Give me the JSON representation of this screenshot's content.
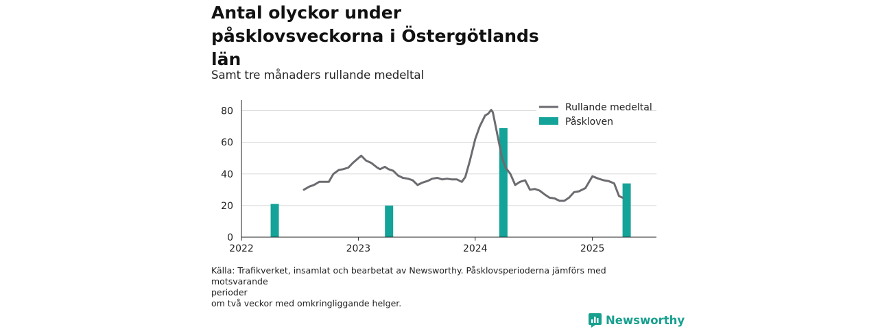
{
  "title": "Antal olyckor under påsklovsveckorna i Östergötlands län",
  "subtitle": "Samt tre månaders rullande medeltal",
  "footnote": {
    "line1": "Källa: Trafikverket, insamlat och bearbetat av Newsworthy. Påsklovsperioderna jämförs med motsvarande",
    "line2": "perioder",
    "line3": "om två veckor med omkringliggande helger."
  },
  "brand": {
    "name": "Newsworthy",
    "icon": "newsworthy-logo-icon",
    "color": "#18a08f"
  },
  "chart_data": {
    "type": "bar+line",
    "title": "Antal olyckor under påsklovsveckorna i Östergötlands län",
    "subtitle": "Samt tre månaders rullande medeltal",
    "x_axis": {
      "type": "date",
      "range": [
        "2022-01-01",
        "2025-07-20"
      ],
      "ticks": [
        "2022",
        "2023",
        "2024",
        "2025"
      ]
    },
    "y_axis": {
      "range": [
        0,
        85
      ],
      "ticks": [
        0,
        20,
        40,
        60,
        80
      ]
    },
    "grid": true,
    "legend": {
      "placement": "top-right",
      "entries": [
        "Rullande medeltal",
        "Påskloven"
      ]
    },
    "colors": {
      "line": "#6b6b70",
      "bars": "#14a398",
      "grid": "#d8d8d8",
      "axis": "#222222"
    },
    "bar_series": {
      "name": "Påskloven",
      "points": [
        {
          "x": "2022-04-15",
          "value": 21
        },
        {
          "x": "2023-04-07",
          "value": 20
        },
        {
          "x": "2024-03-29",
          "value": 69
        },
        {
          "x": "2025-04-18",
          "value": 34
        }
      ]
    },
    "line_series": {
      "name": "Rullande medeltal",
      "points": [
        [
          "2022-07-15",
          30
        ],
        [
          "2022-08-01",
          32
        ],
        [
          "2022-08-15",
          33
        ],
        [
          "2022-09-01",
          35
        ],
        [
          "2022-09-15",
          35
        ],
        [
          "2022-10-01",
          35
        ],
        [
          "2022-10-15",
          40
        ],
        [
          "2022-11-01",
          42.5
        ],
        [
          "2022-11-15",
          43
        ],
        [
          "2022-12-01",
          44
        ],
        [
          "2022-12-15",
          47
        ],
        [
          "2023-01-01",
          50
        ],
        [
          "2023-01-10",
          51.5
        ],
        [
          "2023-01-25",
          48.5
        ],
        [
          "2023-02-10",
          47
        ],
        [
          "2023-03-01",
          44
        ],
        [
          "2023-03-10",
          43
        ],
        [
          "2023-03-25",
          44.5
        ],
        [
          "2023-04-05",
          43
        ],
        [
          "2023-04-20",
          42
        ],
        [
          "2023-05-05",
          39
        ],
        [
          "2023-05-20",
          37.5
        ],
        [
          "2023-06-05",
          37
        ],
        [
          "2023-06-20",
          36
        ],
        [
          "2023-07-05",
          33
        ],
        [
          "2023-07-20",
          34.5
        ],
        [
          "2023-08-05",
          35.5
        ],
        [
          "2023-08-20",
          37
        ],
        [
          "2023-09-05",
          37.5
        ],
        [
          "2023-09-20",
          36.5
        ],
        [
          "2023-10-05",
          37
        ],
        [
          "2023-10-20",
          36.5
        ],
        [
          "2023-11-05",
          36.5
        ],
        [
          "2023-11-20",
          35
        ],
        [
          "2023-12-01",
          38
        ],
        [
          "2023-12-15",
          48
        ],
        [
          "2024-01-01",
          62
        ],
        [
          "2024-01-15",
          70
        ],
        [
          "2024-02-01",
          77
        ],
        [
          "2024-02-10",
          78
        ],
        [
          "2024-02-20",
          80.5
        ],
        [
          "2024-02-25",
          79
        ],
        [
          "2024-03-10",
          65
        ],
        [
          "2024-03-25",
          50
        ],
        [
          "2024-04-05",
          44
        ],
        [
          "2024-04-20",
          40
        ],
        [
          "2024-05-05",
          33
        ],
        [
          "2024-05-20",
          35
        ],
        [
          "2024-06-05",
          36
        ],
        [
          "2024-06-20",
          30
        ],
        [
          "2024-07-05",
          30.5
        ],
        [
          "2024-07-20",
          29.5
        ],
        [
          "2024-08-05",
          27
        ],
        [
          "2024-08-20",
          25
        ],
        [
          "2024-09-05",
          24.5
        ],
        [
          "2024-09-20",
          23
        ],
        [
          "2024-10-05",
          23
        ],
        [
          "2024-10-20",
          25
        ],
        [
          "2024-11-05",
          28.5
        ],
        [
          "2024-11-20",
          29
        ],
        [
          "2024-12-10",
          31
        ],
        [
          "2025-01-01",
          38.5
        ],
        [
          "2025-01-20",
          37
        ],
        [
          "2025-02-05",
          36
        ],
        [
          "2025-02-20",
          35.5
        ],
        [
          "2025-03-10",
          34
        ],
        [
          "2025-03-25",
          26
        ],
        [
          "2025-04-05",
          25
        ]
      ]
    }
  }
}
